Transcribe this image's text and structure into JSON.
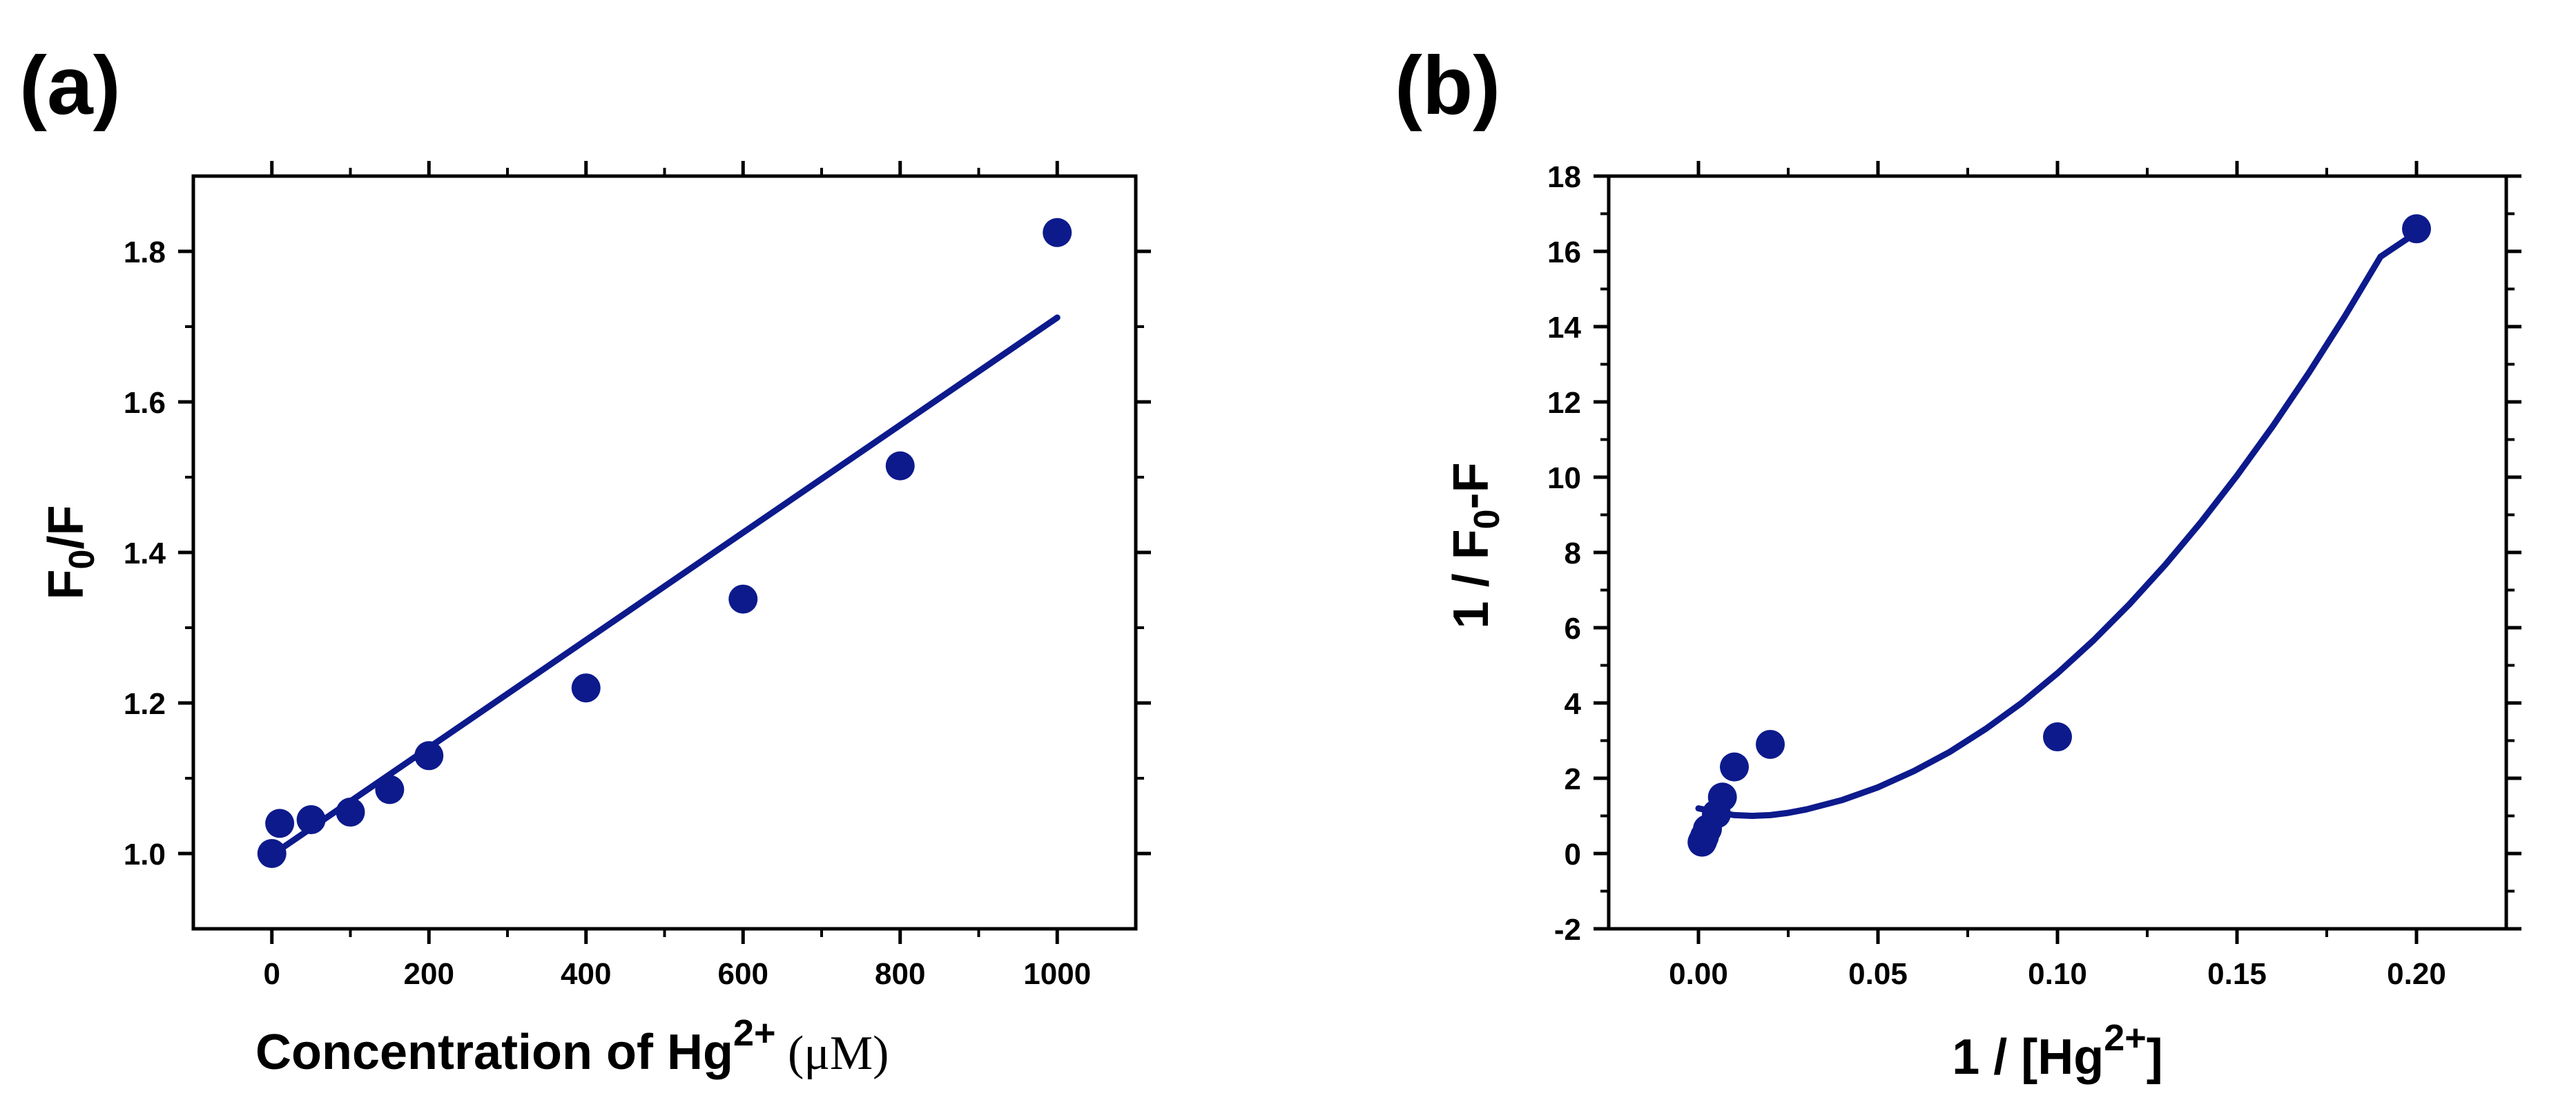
{
  "colors": {
    "series": "#0d1a8c",
    "axis": "#000000",
    "background": "#ffffff"
  },
  "chart_data": [
    {
      "panel_label": "(a)",
      "type": "scatter",
      "title": "",
      "xlabel": "Concentration of Hg",
      "xlabel_sup": "2+",
      "xlabel_unit": " (μM)",
      "ylabel": "F",
      "ylabel_sub": "0",
      "ylabel_tail": "/F",
      "xlim": [
        -100,
        1100
      ],
      "ylim": [
        0.9,
        1.9
      ],
      "xticks": [
        0,
        200,
        400,
        600,
        800,
        1000
      ],
      "xtick_labels": [
        "0",
        "200",
        "400",
        "600",
        "800",
        "1000"
      ],
      "yticks": [
        1.0,
        1.2,
        1.4,
        1.6,
        1.8
      ],
      "ytick_labels": [
        "1.0",
        "1.2",
        "1.4",
        "1.6",
        "1.8"
      ],
      "grid": false,
      "series": [
        {
          "name": "data",
          "kind": "points",
          "x": [
            0,
            10,
            50,
            100,
            150,
            200,
            400,
            600,
            800,
            1000
          ],
          "y": [
            1.0,
            1.04,
            1.045,
            1.055,
            1.085,
            1.13,
            1.22,
            1.338,
            1.515,
            1.825
          ]
        },
        {
          "name": "linear fit",
          "kind": "line",
          "x": [
            0,
            1000
          ],
          "y": [
            0.998,
            1.712
          ]
        }
      ]
    },
    {
      "panel_label": "(b)",
      "type": "scatter",
      "title": "",
      "xlabel": "1 / [Hg",
      "xlabel_sup": "2+",
      "xlabel_tail": "]",
      "ylabel": "1 / F",
      "ylabel_sub": "0",
      "ylabel_tail": "-F",
      "xlim": [
        -0.025,
        0.225
      ],
      "ylim": [
        -2,
        18
      ],
      "xticks": [
        0.0,
        0.05,
        0.1,
        0.15,
        0.2
      ],
      "xtick_labels": [
        "0.00",
        "0.05",
        "0.10",
        "0.15",
        "0.20"
      ],
      "yticks": [
        -2,
        0,
        2,
        4,
        6,
        8,
        10,
        12,
        14,
        16,
        18
      ],
      "ytick_labels": [
        "-2",
        "0",
        "2",
        "4",
        "6",
        "8",
        "10",
        "12",
        "14",
        "16",
        "18"
      ],
      "grid": false,
      "series": [
        {
          "name": "data",
          "kind": "points",
          "x": [
            0.001,
            0.00125,
            0.00167,
            0.0025,
            0.005,
            0.00667,
            0.01,
            0.02,
            0.1,
            0.2
          ],
          "y": [
            0.3,
            0.35,
            0.45,
            0.65,
            1.05,
            1.5,
            2.3,
            2.9,
            3.1,
            16.6
          ]
        },
        {
          "name": "fit curve",
          "kind": "line",
          "x": [
            0.0,
            0.005,
            0.01,
            0.015,
            0.02,
            0.025,
            0.03,
            0.04,
            0.05,
            0.06,
            0.07,
            0.08,
            0.09,
            0.1,
            0.11,
            0.12,
            0.13,
            0.14,
            0.15,
            0.16,
            0.17,
            0.18,
            0.19,
            0.2
          ],
          "y": [
            1.2,
            1.1,
            1.02,
            1.0,
            1.02,
            1.08,
            1.17,
            1.42,
            1.76,
            2.19,
            2.7,
            3.31,
            4.0,
            4.79,
            5.66,
            6.62,
            7.67,
            8.81,
            10.04,
            11.36,
            12.77,
            14.27,
            15.86,
            16.5
          ]
        }
      ]
    }
  ]
}
